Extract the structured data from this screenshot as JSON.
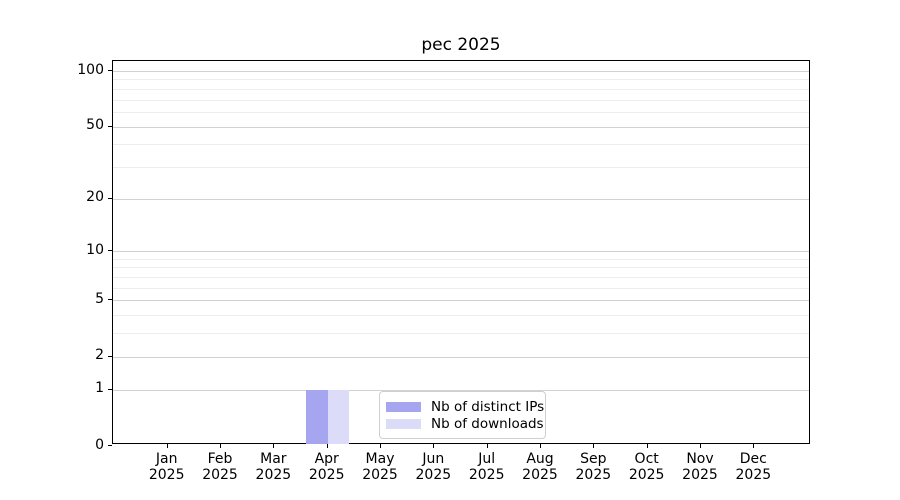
{
  "chart_data": {
    "type": "bar",
    "title": "pec 2025",
    "categories": [
      "Jan",
      "Feb",
      "Mar",
      "Apr",
      "May",
      "Jun",
      "Jul",
      "Aug",
      "Sep",
      "Oct",
      "Nov",
      "Dec"
    ],
    "year_label": "2025",
    "series": [
      {
        "name": "Nb of distinct IPs",
        "color": "#a6a6f0",
        "values": [
          0,
          0,
          0,
          1,
          0,
          0,
          0,
          0,
          0,
          0,
          0,
          0
        ]
      },
      {
        "name": "Nb of downloads",
        "color": "#dcdcf8",
        "values": [
          0,
          0,
          0,
          1,
          0,
          0,
          0,
          0,
          0,
          0,
          0,
          0
        ]
      }
    ],
    "y_axis": {
      "scale": "log1p",
      "major_ticks": [
        0,
        1,
        2,
        5,
        10,
        20,
        50,
        100
      ],
      "minor_gridlines": [
        3,
        4,
        6,
        7,
        8,
        9,
        30,
        40,
        60,
        70,
        80,
        90
      ],
      "range": [
        0,
        113
      ]
    },
    "x_axis": {
      "tick_labels_line2": "2025"
    },
    "legend": {
      "position": "lower center",
      "entries": [
        "Nb of distinct IPs",
        "Nb of downloads"
      ]
    },
    "colors": {
      "grid_major": "#d2d2d2",
      "grid_minor": "#ededed",
      "spine": "#000000",
      "background": "#ffffff"
    }
  }
}
